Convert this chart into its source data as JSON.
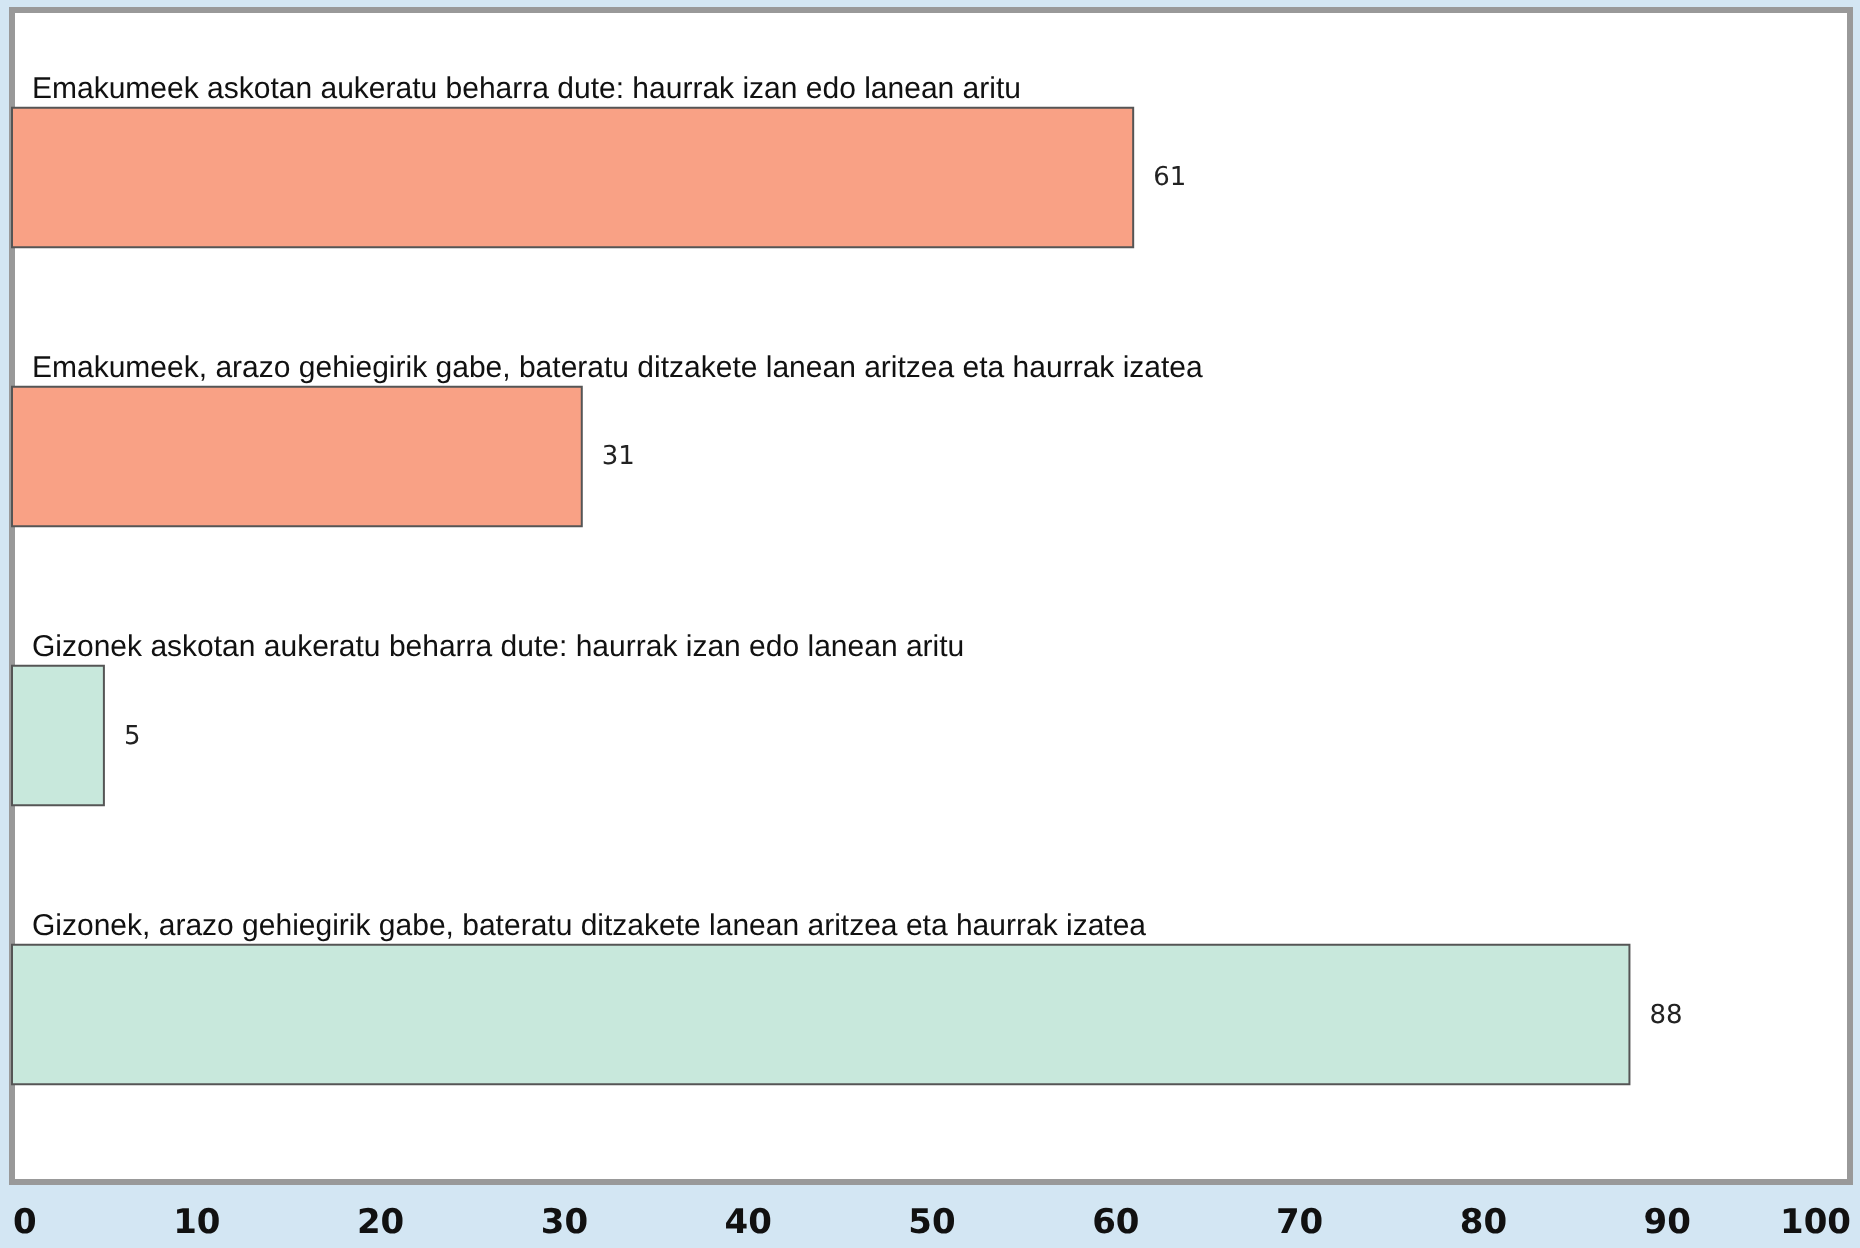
{
  "chart_data": {
    "type": "bar",
    "orientation": "horizontal",
    "categories": [
      "Emakumeek askotan aukeratu beharra dute: haurrak izan edo lanean aritu",
      "Emakumeek, arazo gehiegirik gabe, bateratu ditzakete lanean aritzea eta haurrak izatea",
      "Gizonek askotan aukeratu beharra dute: haurrak izan edo lanean aritu",
      "Gizonek, arazo gehiegirik gabe, bateratu ditzakete lanean aritzea eta haurrak izatea"
    ],
    "values": [
      61,
      31,
      5,
      88
    ],
    "colors": [
      "#f9a185",
      "#f9a185",
      "#c8e8dc",
      "#c8e8dc"
    ],
    "xlim": [
      0,
      100
    ],
    "xticks": [
      0,
      10,
      20,
      30,
      40,
      50,
      60,
      70,
      80,
      90,
      100
    ],
    "data_labels": true,
    "grid": false,
    "tick_labels": "x"
  }
}
